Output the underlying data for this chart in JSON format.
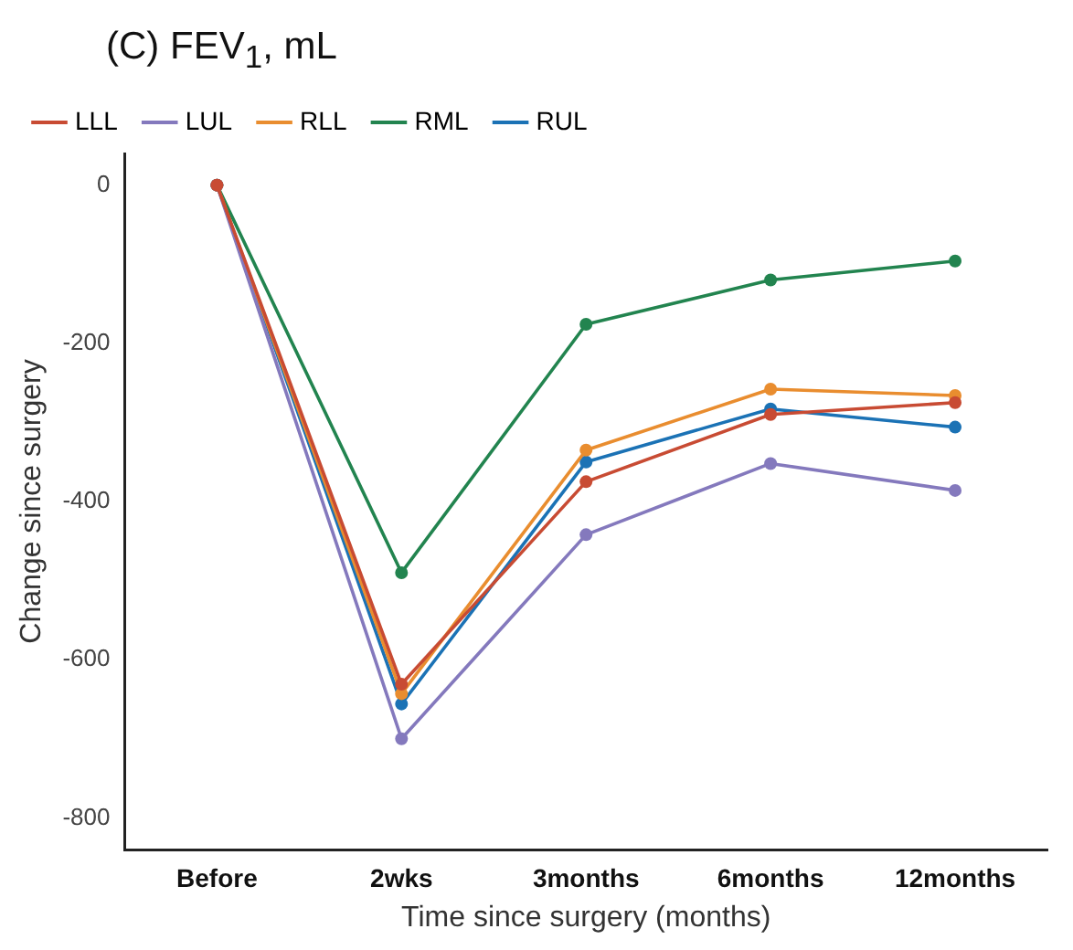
{
  "chart_data": {
    "type": "line",
    "title": "(C) FEV$_{1}$, mL",
    "xlabel": "Time since surgery (months)",
    "ylabel": "Change since surgery",
    "categories": [
      "Before",
      "2wks",
      "3months",
      "6months",
      "12months"
    ],
    "ylim": [
      -840,
      40
    ],
    "yticks": [
      -800,
      -600,
      -400,
      -200,
      0
    ],
    "series": [
      {
        "name": "LLL",
        "color": "#c84b33",
        "values": [
          0,
          -631,
          -375,
          -290,
          -275
        ]
      },
      {
        "name": "LUL",
        "color": "#8479bd",
        "values": [
          0,
          -700,
          -442,
          -352,
          -386
        ]
      },
      {
        "name": "RLL",
        "color": "#e98d2f",
        "values": [
          0,
          -643,
          -335,
          -258,
          -266
        ]
      },
      {
        "name": "RML",
        "color": "#22844f",
        "values": [
          0,
          -490,
          -176,
          -120,
          -96
        ]
      },
      {
        "name": "RUL",
        "color": "#1b72b5",
        "values": [
          0,
          -656,
          -350,
          -283,
          -306
        ]
      }
    ],
    "grid": false,
    "legend": "top left",
    "marker": "circle",
    "line_style": "solid"
  }
}
